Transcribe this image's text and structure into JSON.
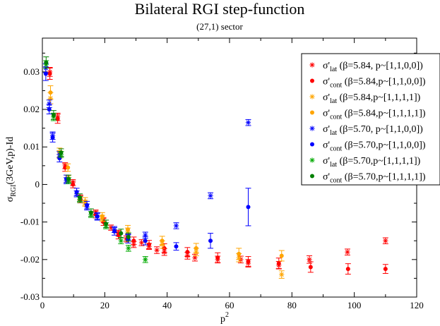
{
  "chart_data": {
    "type": "scatter",
    "title": "Bilateral RGI step-function",
    "subtitle": "(27,1) sector",
    "xlabel": "p",
    "xlabel_sup": "2",
    "ylabel": "σ",
    "ylabel_sub": "RGI",
    "ylabel_rest": "(3GeV,p)-Id",
    "xlim": [
      0,
      120
    ],
    "ylim": [
      -0.03,
      0.039
    ],
    "xticks": [
      0,
      20,
      40,
      60,
      80,
      100,
      120
    ],
    "yticks": [
      -0.03,
      -0.02,
      -0.01,
      0,
      0.01,
      0.02,
      0.03
    ],
    "xtick_labels": [
      "0",
      "20",
      "40",
      "60",
      "80",
      "100",
      "120"
    ],
    "ytick_labels": [
      "-0.03",
      "-0.02",
      "-0.01",
      "0",
      "0.01",
      "0.02",
      "0.03"
    ],
    "legend_position": "top-right",
    "series": [
      {
        "name": "σ'lat (β=5.84, p~[1,1,0,0])",
        "leg_sym": "σ'",
        "leg_sub": "lat",
        "leg_rest": " (β=5.84, p~[1,1,0,0])",
        "color": "#ff0000",
        "marker": "star",
        "points": [
          [
            2.4,
            0.03,
            0.0012
          ],
          [
            4.9,
            0.018,
            0.001
          ],
          [
            7.3,
            0.005,
            0.0008
          ],
          [
            9.8,
            0.0005,
            0.0008
          ],
          [
            12.2,
            -0.0035,
            0.0007
          ],
          [
            17.1,
            -0.0075,
            0.0007
          ],
          [
            19.6,
            -0.0095,
            0.0007
          ],
          [
            22,
            -0.0115,
            0.0007
          ],
          [
            24.4,
            -0.013,
            0.0008
          ],
          [
            26.9,
            -0.0145,
            0.0008
          ],
          [
            29.3,
            -0.016,
            0.0008
          ],
          [
            31.8,
            -0.0155,
            0.0008
          ],
          [
            34.2,
            -0.0165,
            0.0008
          ],
          [
            36.7,
            -0.0175,
            0.0009
          ],
          [
            39.1,
            -0.018,
            0.0009
          ],
          [
            46.5,
            -0.019,
            0.0009
          ],
          [
            48.9,
            -0.0195,
            0.0009
          ],
          [
            56.2,
            -0.02,
            0.0009
          ],
          [
            63.6,
            -0.02,
            0.0009
          ],
          [
            66,
            -0.021,
            0.001
          ],
          [
            75.8,
            -0.0215,
            0.001
          ],
          [
            85.6,
            -0.02,
            0.001
          ],
          [
            97.8,
            -0.018,
            0.0008
          ],
          [
            110,
            -0.015,
            0.0008
          ]
        ]
      },
      {
        "name": "σ'cont (β=5.84,p~[1,1,0,0])",
        "leg_sym": "σ'",
        "leg_sub": "cont",
        "leg_rest": " (β=5.84,p~[1,1,0,0])",
        "color": "#ff0000",
        "marker": "dot",
        "points": [
          [
            2.4,
            0.0295,
            0.0015
          ],
          [
            4.9,
            0.0175,
            0.0012
          ],
          [
            7.3,
            0.0045,
            0.001
          ],
          [
            9.8,
            0.0,
            0.0009
          ],
          [
            12.2,
            -0.004,
            0.0009
          ],
          [
            17.1,
            -0.008,
            0.0009
          ],
          [
            19.6,
            -0.01,
            0.0009
          ],
          [
            24.4,
            -0.0135,
            0.001
          ],
          [
            29.3,
            -0.015,
            0.001
          ],
          [
            34.2,
            -0.016,
            0.0011
          ],
          [
            39.1,
            -0.017,
            0.0012
          ],
          [
            46.5,
            -0.018,
            0.0012
          ],
          [
            56.2,
            -0.0195,
            0.0013
          ],
          [
            66,
            -0.0205,
            0.0013
          ],
          [
            75.8,
            -0.021,
            0.0014
          ],
          [
            86,
            -0.022,
            0.0014
          ],
          [
            98,
            -0.0225,
            0.0014
          ],
          [
            110,
            -0.0225,
            0.0012
          ]
        ]
      },
      {
        "name": "σ'lat (β=5.84,p~[1,1,1,1])",
        "leg_sym": "σ'",
        "leg_sub": "lat",
        "leg_rest": " (β=5.84,p~[1,1,1,1])",
        "color": "#ffa500",
        "marker": "star",
        "points": [
          [
            2.6,
            0.023,
            0.0015
          ],
          [
            5.5,
            0.008,
            0.001
          ],
          [
            8.2,
            0.0015,
            0.0008
          ],
          [
            13.7,
            -0.005,
            0.0008
          ],
          [
            19.2,
            -0.009,
            0.0008
          ],
          [
            27.4,
            -0.0125,
            0.0009
          ],
          [
            38.4,
            -0.016,
            0.001
          ],
          [
            49.3,
            -0.018,
            0.001
          ],
          [
            63,
            -0.0195,
            0.0011
          ],
          [
            76.7,
            -0.024,
            0.001
          ]
        ]
      },
      {
        "name": "σ'cont (β=5.84,p~[1,1,1,1])",
        "leg_sym": "σ'",
        "leg_sub": "cont",
        "leg_rest": " (β=5.84,p~[1,1,1,1])",
        "color": "#ffa500",
        "marker": "dot",
        "points": [
          [
            2.6,
            0.0245,
            0.0018
          ],
          [
            5.5,
            0.0085,
            0.0012
          ],
          [
            8.2,
            0.0045,
            0.001
          ],
          [
            13.7,
            -0.0045,
            0.001
          ],
          [
            19.2,
            -0.0085,
            0.001
          ],
          [
            27.4,
            -0.012,
            0.0011
          ],
          [
            38.4,
            -0.015,
            0.0012
          ],
          [
            49.3,
            -0.017,
            0.0013
          ],
          [
            63,
            -0.0185,
            0.0015
          ],
          [
            76.7,
            -0.019,
            0.0014
          ]
        ]
      },
      {
        "name": "σ'lat (β=5.70, p~[1,1,0,0])",
        "leg_sym": "σ'",
        "leg_sub": "lat",
        "leg_rest": " (β=5.70, p~[1,1,0,0])",
        "color": "#0000ff",
        "marker": "star",
        "points": [
          [
            1.1,
            0.031,
            0.0012
          ],
          [
            2.2,
            0.0215,
            0.001
          ],
          [
            3.3,
            0.013,
            0.001
          ],
          [
            5.5,
            0.008,
            0.0008
          ],
          [
            7.7,
            0.001,
            0.0008
          ],
          [
            11,
            -0.0025,
            0.0008
          ],
          [
            14.3,
            -0.006,
            0.0008
          ],
          [
            17.6,
            -0.0085,
            0.0008
          ],
          [
            23.1,
            -0.012,
            0.0008
          ],
          [
            27.5,
            -0.014,
            0.0008
          ],
          [
            33,
            -0.0135,
            0.0008
          ],
          [
            42.9,
            -0.011,
            0.0008
          ],
          [
            53.9,
            -0.003,
            0.0008
          ],
          [
            66,
            0.0165,
            0.0008
          ]
        ]
      },
      {
        "name": "σ'cont (β=5.70,p~[1,1,0,0])",
        "leg_sym": "σ'",
        "leg_sub": "cont",
        "leg_rest": " (β=5.70,p~[1,1,0,0])",
        "color": "#0000ff",
        "marker": "dot",
        "points": [
          [
            1.1,
            0.0295,
            0.0018
          ],
          [
            2.2,
            0.02,
            0.0012
          ],
          [
            3.3,
            0.0125,
            0.0012
          ],
          [
            5.5,
            0.007,
            0.001
          ],
          [
            7.7,
            0.0015,
            0.001
          ],
          [
            11,
            -0.002,
            0.001
          ],
          [
            14.3,
            -0.0055,
            0.001
          ],
          [
            17.6,
            -0.0085,
            0.001
          ],
          [
            23.1,
            -0.0125,
            0.001
          ],
          [
            27.5,
            -0.0145,
            0.0011
          ],
          [
            33,
            -0.015,
            0.0011
          ],
          [
            42.9,
            -0.0165,
            0.001
          ],
          [
            53.9,
            -0.015,
            0.002
          ],
          [
            66,
            -0.006,
            0.005
          ]
        ]
      },
      {
        "name": "σ'lat (β=5.70,p~[1,1,1,1])",
        "leg_sym": "σ'",
        "leg_sub": "lat",
        "leg_rest": " (β=5.70,p~[1,1,1,1])",
        "color": "#00aa00",
        "marker": "star",
        "points": [
          [
            1.2,
            0.032,
            0.001
          ],
          [
            3.6,
            0.018,
            0.001
          ],
          [
            6,
            0.008,
            0.0008
          ],
          [
            8.4,
            0.001,
            0.0008
          ],
          [
            12,
            -0.004,
            0.0008
          ],
          [
            15.6,
            -0.008,
            0.0008
          ],
          [
            20.4,
            -0.011,
            0.0008
          ],
          [
            25.2,
            -0.015,
            0.0008
          ],
          [
            27.6,
            -0.017,
            0.0008
          ],
          [
            33,
            -0.02,
            0.0008
          ]
        ]
      },
      {
        "name": "σ'cont (β=5.70,p~[1,1,1,1])",
        "leg_sym": "σ'",
        "leg_sub": "cont",
        "leg_rest": " (β=5.70,p~[1,1,1,1])",
        "color": "#008000",
        "marker": "dot",
        "points": [
          [
            1.2,
            0.0325,
            0.0015
          ],
          [
            3.6,
            0.0185,
            0.0012
          ],
          [
            6,
            0.0085,
            0.001
          ],
          [
            8.4,
            0.0015,
            0.001
          ],
          [
            12,
            -0.0035,
            0.001
          ],
          [
            15.6,
            -0.0075,
            0.001
          ],
          [
            20.4,
            -0.0105,
            0.001
          ],
          [
            25.2,
            -0.013,
            0.0011
          ],
          [
            27.6,
            -0.014,
            0.0011
          ]
        ]
      }
    ]
  }
}
